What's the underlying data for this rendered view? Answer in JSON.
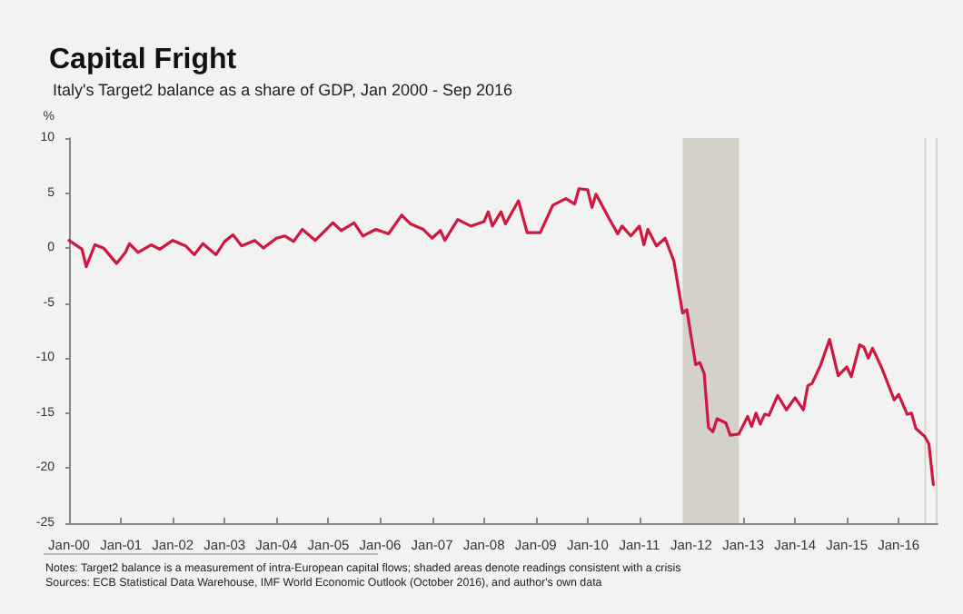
{
  "chart_data": {
    "type": "line",
    "title": "Capital Fright",
    "subtitle": "Italy's Target2 balance as a share of GDP, Jan 2000 - Sep 2016",
    "ylabel": "%",
    "annotations": [
      "Notes: Target2 balance is a measurement of intra-European capital flows; shaded areas denote readings consistent with a crisis",
      "Sources: ECB Statistical Data Warehouse, IMF World Economic Outlook (October 2016), and author's own data"
    ],
    "x": [
      "2000-01",
      "2000-04",
      "2000-05",
      "2000-07",
      "2000-09",
      "2000-12",
      "2001-02",
      "2001-03",
      "2001-05",
      "2001-08",
      "2001-10",
      "2002-01",
      "2002-04",
      "2002-06",
      "2002-08",
      "2002-11",
      "2003-01",
      "2003-03",
      "2003-05",
      "2003-08",
      "2003-10",
      "2004-01",
      "2004-03",
      "2004-05",
      "2004-07",
      "2004-10",
      "2005-02",
      "2005-04",
      "2005-07",
      "2005-09",
      "2005-12",
      "2006-03",
      "2006-06",
      "2006-08",
      "2006-11",
      "2007-01",
      "2007-03",
      "2007-04",
      "2007-07",
      "2007-10",
      "2008-01",
      "2008-02",
      "2008-03",
      "2008-05",
      "2008-06",
      "2008-09",
      "2008-11",
      "2009-02",
      "2009-05",
      "2009-08",
      "2009-10",
      "2009-11",
      "2010-01",
      "2010-02",
      "2010-03",
      "2010-06",
      "2010-08",
      "2010-09",
      "2010-11",
      "2011-01",
      "2011-02",
      "2011-03",
      "2011-05",
      "2011-07",
      "2011-09",
      "2011-11",
      "2011-12",
      "2012-02",
      "2012-03",
      "2012-04",
      "2012-05",
      "2012-06",
      "2012-07",
      "2012-09",
      "2012-10",
      "2012-12",
      "2013-02",
      "2013-03",
      "2013-04",
      "2013-05",
      "2013-06",
      "2013-07",
      "2013-09",
      "2013-11",
      "2014-01",
      "2014-03",
      "2014-04",
      "2014-05",
      "2014-07",
      "2014-09",
      "2014-11",
      "2015-01",
      "2015-02",
      "2015-04",
      "2015-05",
      "2015-06",
      "2015-07",
      "2015-09",
      "2015-12",
      "2016-01",
      "2016-03",
      "2016-04",
      "2016-05",
      "2016-07",
      "2016-08",
      "2016-09"
    ],
    "series": [
      {
        "color": "#d0173f",
        "values": [
          0.7,
          -0.1,
          -1.7,
          0.3,
          0,
          -1.4,
          -0.4,
          0.4,
          -0.4,
          0.3,
          -0.1,
          0.7,
          0.2,
          -0.6,
          0.4,
          -0.6,
          0.6,
          1.2,
          0.2,
          0.7,
          0,
          0.9,
          1.1,
          0.6,
          1.7,
          0.7,
          2.3,
          1.6,
          2.3,
          1.1,
          1.7,
          1.3,
          3.0,
          2.2,
          1.7,
          0.9,
          1.6,
          0.7,
          2.6,
          2.0,
          2.4,
          3.3,
          2.0,
          3.3,
          2.2,
          4.3,
          1.4,
          1.4,
          3.9,
          4.5,
          4.0,
          5.4,
          5.3,
          3.7,
          4.9,
          2.7,
          1.3,
          2.0,
          1.1,
          2.0,
          0.3,
          1.7,
          0.2,
          0.9,
          -1.2,
          -5.9,
          -5.6,
          -10.6,
          -10.4,
          -11.4,
          -16.3,
          -16.7,
          -15.5,
          -15.9,
          -17.0,
          -16.9,
          -15.3,
          -16.2,
          -15.0,
          -16.0,
          -15.1,
          -15.2,
          -13.4,
          -14.7,
          -13.6,
          -14.7,
          -12.5,
          -12.3,
          -10.6,
          -8.3,
          -11.6,
          -10.8,
          -11.7,
          -8.8,
          -9.0,
          -10.0,
          -9.1,
          -10.8,
          -13.8,
          -13.3,
          -15.1,
          -15.0,
          -16.4,
          -17.1,
          -17.8,
          -21.5
        ]
      }
    ],
    "xlim": [
      "2000-01",
      "2016-10"
    ],
    "xticks": [
      {
        "value": "2000-01",
        "label": "Jan-00"
      },
      {
        "value": "2001-01",
        "label": "Jan-01"
      },
      {
        "value": "2002-01",
        "label": "Jan-02"
      },
      {
        "value": "2003-01",
        "label": "Jan-03"
      },
      {
        "value": "2004-01",
        "label": "Jan-04"
      },
      {
        "value": "2005-01",
        "label": "Jan-05"
      },
      {
        "value": "2006-01",
        "label": "Jan-06"
      },
      {
        "value": "2007-01",
        "label": "Jan-07"
      },
      {
        "value": "2008-01",
        "label": "Jan-08"
      },
      {
        "value": "2009-01",
        "label": "Jan-09"
      },
      {
        "value": "2010-01",
        "label": "Jan-10"
      },
      {
        "value": "2011-01",
        "label": "Jan-11"
      },
      {
        "value": "2012-01",
        "label": "Jan-12"
      },
      {
        "value": "2013-01",
        "label": "Jan-13"
      },
      {
        "value": "2014-01",
        "label": "Jan-14"
      },
      {
        "value": "2015-01",
        "label": "Jan-15"
      },
      {
        "value": "2016-01",
        "label": "Jan-16"
      }
    ],
    "ylim": [
      -25,
      10
    ],
    "yticks": [
      -25,
      -20,
      -15,
      -10,
      -5,
      0,
      5,
      10
    ],
    "bands": [
      {
        "axis": "x",
        "from": "2011-11",
        "to": "2012-12",
        "color": "#d4d1c9"
      },
      {
        "axis": "x",
        "from": "2016-07",
        "to": "2016-07-12",
        "color": "#d4d1c9"
      },
      {
        "axis": "x",
        "from": "2016-09-18",
        "to": "2016-09-30",
        "color": "#d4d1c9"
      }
    ],
    "grid": false,
    "marker": "none",
    "line_style": "solid"
  }
}
